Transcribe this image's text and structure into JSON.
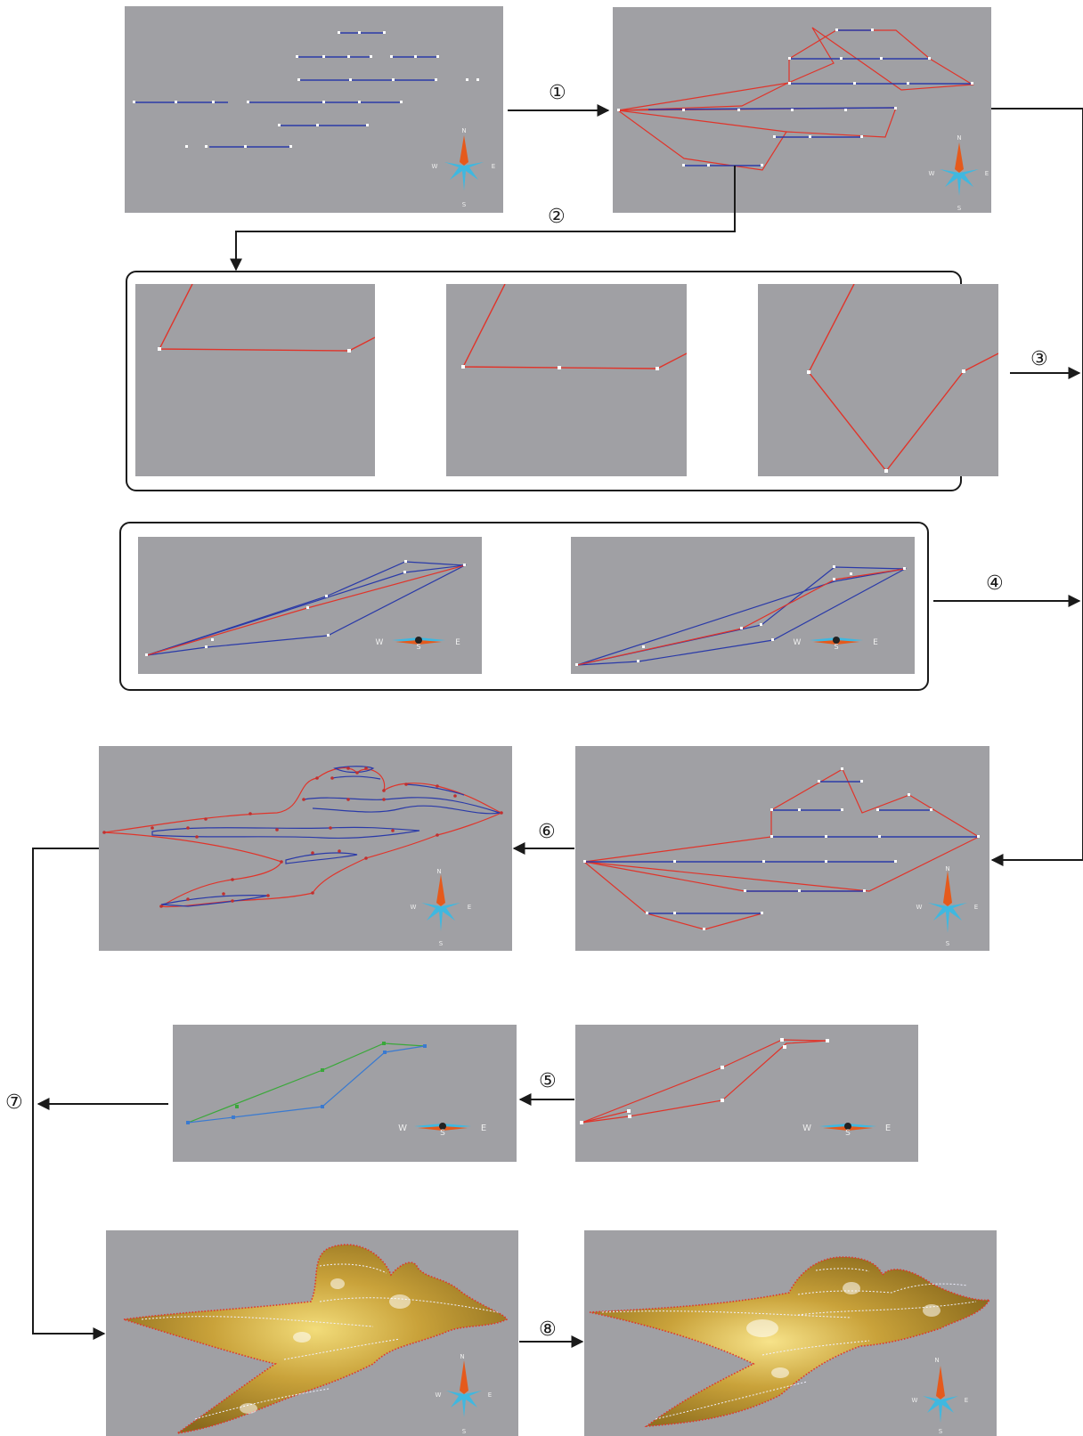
{
  "steps": [
    "①",
    "②",
    "③",
    "④",
    "⑤",
    "⑥",
    "⑦",
    "⑧"
  ],
  "compass": {
    "n": "N",
    "s": "S",
    "w": "W",
    "e": "E"
  },
  "colors": {
    "panel_bg": "#a0a0a4",
    "red_line": "#e0342a",
    "blue_line": "#2a3aa8",
    "green_line": "#3aa83a",
    "light_blue_line": "#3a7ad0",
    "point": "#ffffff",
    "compass_orange": "#e55a1c",
    "compass_cyan": "#3fb8e0",
    "surface_gold": "#c29a2e"
  }
}
